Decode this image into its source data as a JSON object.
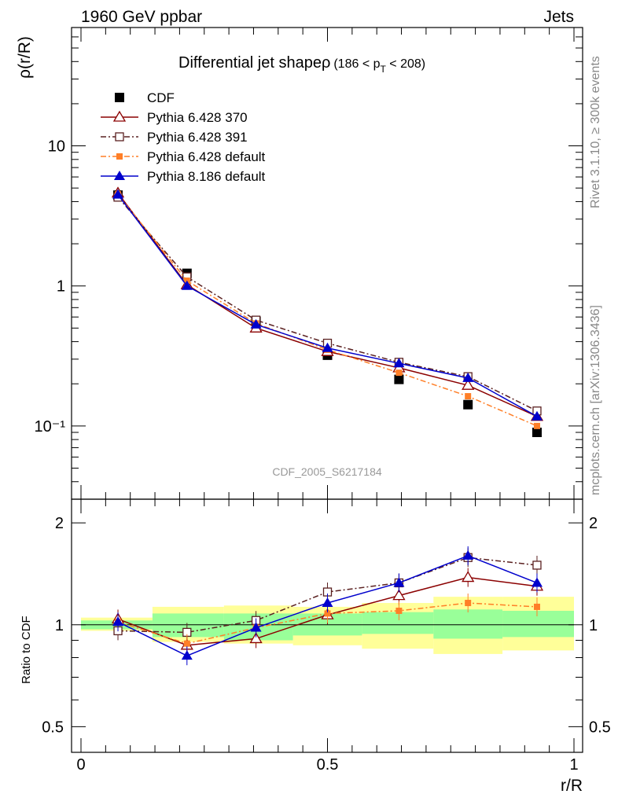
{
  "header": {
    "left": "1960 GeV ppbar",
    "right": "Jets"
  },
  "side_labels": {
    "rivet": "Rivet 3.1.10, ≥ 300k events",
    "url": "mcplots.cern.ch [arXiv:1306.3436]"
  },
  "watermark": "CDF_2005_S6217184",
  "chart_data": [
    {
      "type": "line",
      "panel": "main",
      "title_main": "Differential jet shapeρ",
      "title_sub": "(186 < p",
      "title_sub_index": "T",
      "title_sub_end": " < 208)",
      "ylabel": "ρ(r/R)",
      "yscale": "log",
      "ylim": [
        0.03,
        70
      ],
      "xlim": [
        -0.02,
        1.02
      ],
      "y_ticks": [
        {
          "value": 10,
          "label": "10"
        },
        {
          "value": 1,
          "label": "1"
        },
        {
          "value": 0.1,
          "label": "10⁻¹"
        }
      ],
      "x": [
        0.075,
        0.215,
        0.355,
        0.5,
        0.645,
        0.785,
        0.925
      ],
      "series": [
        {
          "name": "CDF",
          "color": "#000000",
          "marker": "square-filled",
          "line": "none",
          "values": [
            4.45,
            1.23,
            0.56,
            0.32,
            0.215,
            0.142,
            0.09
          ]
        },
        {
          "name": "Pythia 6.428 370",
          "color": "#8b0000",
          "marker": "triangle-open",
          "line": "solid",
          "values": [
            4.6,
            1.02,
            0.5,
            0.34,
            0.26,
            0.195,
            0.117
          ]
        },
        {
          "name": "Pythia 6.428 391",
          "color": "#5a2020",
          "marker": "square-open",
          "line": "dashdot",
          "values": [
            4.3,
            1.16,
            0.57,
            0.39,
            0.285,
            0.225,
            0.128
          ]
        },
        {
          "name": "Pythia 6.428 default",
          "color": "#ff7f27",
          "marker": "square-filled-small",
          "line": "dashdot",
          "values": [
            4.5,
            1.09,
            0.54,
            0.35,
            0.24,
            0.163,
            0.1
          ]
        },
        {
          "name": "Pythia 8.186 default",
          "color": "#0000cc",
          "marker": "triangle-filled",
          "line": "solid",
          "values": [
            4.48,
            1.0,
            0.53,
            0.36,
            0.28,
            0.22,
            0.117
          ]
        }
      ]
    },
    {
      "type": "line",
      "panel": "ratio",
      "ylabel": "Ratio to CDF",
      "xlabel": "r/R",
      "yscale": "log",
      "ylim": [
        0.42,
        2.35
      ],
      "y_ticks": [
        {
          "value": 2,
          "label": "2"
        },
        {
          "value": 1,
          "label": "1"
        },
        {
          "value": 0.5,
          "label": "0.5"
        }
      ],
      "x_ticks": [
        {
          "value": 0,
          "label": "0"
        },
        {
          "value": 0.5,
          "label": "0.5"
        },
        {
          "value": 1,
          "label": "1"
        }
      ],
      "bin_edges": [
        0,
        0.145,
        0.29,
        0.43,
        0.57,
        0.715,
        0.855,
        1.0
      ],
      "band_yellow": [
        [
          0.96,
          1.05
        ],
        [
          0.89,
          1.13
        ],
        [
          0.88,
          1.14
        ],
        [
          0.87,
          1.13
        ],
        [
          0.85,
          1.16
        ],
        [
          0.82,
          1.21
        ],
        [
          0.84,
          1.21
        ]
      ],
      "band_green": [
        [
          0.97,
          1.03
        ],
        [
          0.92,
          1.08
        ],
        [
          0.9,
          1.08
        ],
        [
          0.93,
          1.08
        ],
        [
          0.94,
          1.09
        ],
        [
          0.91,
          1.11
        ],
        [
          0.92,
          1.1
        ]
      ],
      "x": [
        0.075,
        0.215,
        0.355,
        0.5,
        0.645,
        0.785,
        0.925
      ],
      "series": [
        {
          "name": "Pythia 6.428 370",
          "color": "#8b0000",
          "marker": "triangle-open",
          "line": "solid",
          "values": [
            1.04,
            0.87,
            0.91,
            1.07,
            1.22,
            1.38,
            1.3
          ]
        },
        {
          "name": "Pythia 6.428 391",
          "color": "#5a2020",
          "marker": "square-open",
          "line": "dashdot",
          "values": [
            0.96,
            0.95,
            1.03,
            1.25,
            1.33,
            1.58,
            1.5
          ]
        },
        {
          "name": "Pythia 6.428 default",
          "color": "#ff7f27",
          "marker": "square-filled-small",
          "line": "dashdot",
          "values": [
            1.02,
            0.88,
            0.98,
            1.08,
            1.1,
            1.16,
            1.13
          ]
        },
        {
          "name": "Pythia 8.186 default",
          "color": "#0000cc",
          "marker": "triangle-filled",
          "line": "solid",
          "values": [
            1.02,
            0.81,
            0.98,
            1.16,
            1.33,
            1.6,
            1.33
          ]
        }
      ]
    }
  ]
}
